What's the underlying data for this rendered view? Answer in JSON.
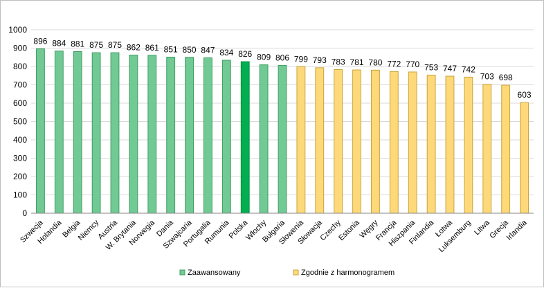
{
  "chart_data": {
    "type": "bar",
    "title": "",
    "xlabel": "",
    "ylabel": "",
    "ylim": [
      0,
      1000
    ],
    "yticks": [
      0,
      100,
      200,
      300,
      400,
      500,
      600,
      700,
      800,
      900,
      1000
    ],
    "grid": "horizontal",
    "legend_position": "bottom",
    "categories": [
      "Szwecja",
      "Holandia",
      "Belgia",
      "Niemcy",
      "Austria",
      "W. Brytania",
      "Norwegia",
      "Dania",
      "Szwajcaria",
      "Portugalia",
      "Rumunia",
      "Polska",
      "Włochy",
      "Bułgaria",
      "Słowenia",
      "Słowacja",
      "Czechy",
      "Estonia",
      "Węgry",
      "Francja",
      "Hiszpania",
      "Finlandia",
      "Łotwa",
      "Luksemburg",
      "Litwa",
      "Grecja",
      "Irlandia"
    ],
    "values": [
      896,
      884,
      881,
      875,
      875,
      862,
      861,
      851,
      850,
      847,
      834,
      826,
      809,
      806,
      799,
      793,
      783,
      781,
      780,
      772,
      770,
      753,
      747,
      742,
      703,
      698,
      603
    ],
    "bar_group": [
      "adv",
      "adv",
      "adv",
      "adv",
      "adv",
      "adv",
      "adv",
      "adv",
      "adv",
      "adv",
      "adv",
      "highlight",
      "adv",
      "adv",
      "sched",
      "sched",
      "sched",
      "sched",
      "sched",
      "sched",
      "sched",
      "sched",
      "sched",
      "sched",
      "sched",
      "sched",
      "sched"
    ],
    "colors": {
      "adv": "#71c994",
      "adv_border": "#3f9e62",
      "highlight": "#00b050",
      "highlight_border": "#008a3c",
      "sched": "#fdd97a",
      "sched_border": "#c9a43a",
      "grid": "#d9d9d9",
      "axis": "#868686"
    },
    "legend": [
      {
        "key": "adv",
        "label": "Zaawansowany"
      },
      {
        "key": "sched",
        "label": "Zgodnie z harmonogramem"
      }
    ]
  }
}
